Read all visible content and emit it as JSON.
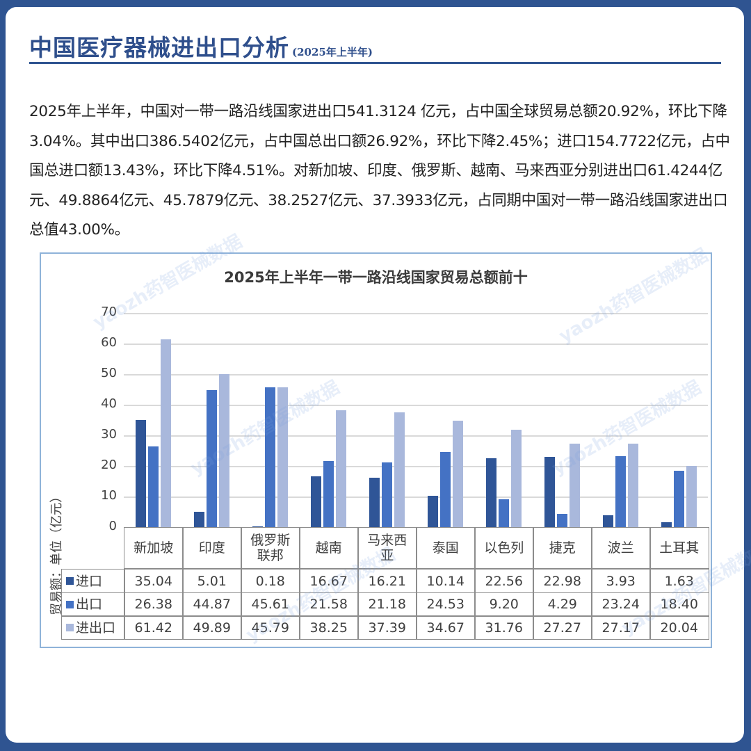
{
  "header": {
    "title": "中国医疗器械进出口分析",
    "subtitle": "(2025年上半年)"
  },
  "paragraph": "2025年上半年，中国对一带一路沿线国家进出口541.3124 亿元，占中国全球贸易总额20.92%，环比下降3.04%。其中出口386.5402亿元，占中国总出口额26.92%，环比下降2.45%；进口154.7722亿元，占中国总进口额13.43%，环比下降4.51%。对新加坡、印度、俄罗斯、越南、马来西亚分别进出口61.4244亿元、49.8864亿元、45.7879亿元、38.2527亿元、37.3933亿元，占同期中国对一带一路沿线国家进出口总值43.00%。",
  "watermark": "yaozh药智医械数据",
  "colors": {
    "frame": "#2f5491",
    "title": "#2f4f8c",
    "import": "#2f5597",
    "export": "#4472c4",
    "total": "#a9b8dc",
    "chart_border": "#8fb3d9"
  },
  "chart_data": {
    "type": "bar",
    "title": "2025年上半年一带一路沿线国家贸易总额前十",
    "xlabel": "",
    "ylabel": "贸易额：单位（亿元）",
    "ylim": [
      0,
      70
    ],
    "yticks": [
      "0",
      "10",
      "20",
      "30",
      "40",
      "50",
      "60",
      "70"
    ],
    "grid": true,
    "legend_position": "data-table",
    "categories": [
      "新加坡",
      "印度",
      "俄罗斯联邦",
      "越南",
      "马来西亚",
      "泰国",
      "以色列",
      "捷克",
      "波兰",
      "土耳其"
    ],
    "category_labels": [
      [
        "新加坡"
      ],
      [
        "印度"
      ],
      [
        "俄罗斯",
        "联邦"
      ],
      [
        "越南"
      ],
      [
        "马来西",
        "亚"
      ],
      [
        "泰国"
      ],
      [
        "以色列"
      ],
      [
        "捷克"
      ],
      [
        "波兰"
      ],
      [
        "土耳其"
      ]
    ],
    "series": [
      {
        "name": "进口",
        "color": "#2f5597",
        "values": [
          35.04,
          5.01,
          0.18,
          16.67,
          16.21,
          10.14,
          22.56,
          22.98,
          3.93,
          1.63
        ],
        "labels": [
          "35.04",
          "5.01",
          "0.18",
          "16.67",
          "16.21",
          "10.14",
          "22.56",
          "22.98",
          "3.93",
          "1.63"
        ]
      },
      {
        "name": "出口",
        "color": "#4472c4",
        "values": [
          26.38,
          44.87,
          45.61,
          21.58,
          21.18,
          24.53,
          9.2,
          4.29,
          23.24,
          18.4
        ],
        "labels": [
          "26.38",
          "44.87",
          "45.61",
          "21.58",
          "21.18",
          "24.53",
          "9.20",
          "4.29",
          "23.24",
          "18.40"
        ]
      },
      {
        "name": "进出口",
        "color": "#a9b8dc",
        "values": [
          61.42,
          49.89,
          45.79,
          38.25,
          37.39,
          34.67,
          31.76,
          27.27,
          27.17,
          20.04
        ],
        "labels": [
          "61.42",
          "49.89",
          "45.79",
          "38.25",
          "37.39",
          "34.67",
          "31.76",
          "27.27",
          "27.17",
          "20.04"
        ]
      }
    ]
  }
}
